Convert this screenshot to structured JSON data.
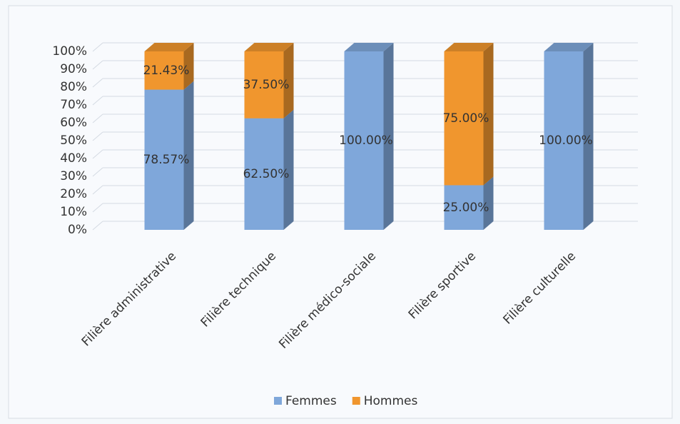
{
  "chart_data": {
    "type": "bar3d_stacked",
    "categories": [
      "Filière administrative",
      "Filière technique",
      "Filière médico-sociale",
      "Filière sportive",
      "Filière culturelle"
    ],
    "series": [
      {
        "name": "Femmes",
        "color": "#7fa7da",
        "values": [
          78.57,
          62.5,
          100,
          25,
          100
        ],
        "value_labels": [
          "78.57%",
          "62.50%",
          "100.00%",
          "25.00%",
          "100.00%"
        ]
      },
      {
        "name": "Hommes",
        "color": "#f0962e",
        "values": [
          21.43,
          37.5,
          0,
          75,
          0
        ],
        "value_labels": [
          "21.43%",
          "37.50%",
          null,
          "75.00%",
          null
        ]
      }
    ],
    "ylim": [
      0,
      100
    ],
    "yticks": [
      {
        "value": 0,
        "label": "0%"
      },
      {
        "value": 10,
        "label": "10%"
      },
      {
        "value": 20,
        "label": "20%"
      },
      {
        "value": 30,
        "label": "30%"
      },
      {
        "value": 40,
        "label": "40%"
      },
      {
        "value": 50,
        "label": "50%"
      },
      {
        "value": 60,
        "label": "60%"
      },
      {
        "value": 70,
        "label": "70%"
      },
      {
        "value": 80,
        "label": "80%"
      },
      {
        "value": 90,
        "label": "90%"
      },
      {
        "value": 100,
        "label": "100%"
      }
    ],
    "grid": true,
    "legend": "bottom"
  }
}
